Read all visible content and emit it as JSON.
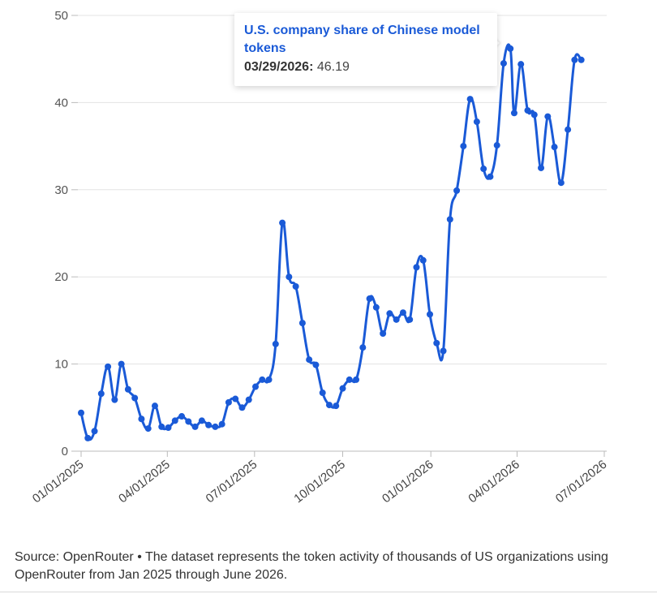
{
  "chart_data": {
    "type": "line",
    "title": "",
    "xlabel": "",
    "ylabel": "",
    "ylim": [
      0,
      50
    ],
    "y_ticks": [
      "0",
      "10",
      "20",
      "30",
      "40",
      "50"
    ],
    "x_ticks": [
      "01/01/2025",
      "04/01/2025",
      "07/01/2025",
      "10/01/2025",
      "01/01/2026",
      "04/01/2026",
      "07/01/2026"
    ],
    "x_tick_dates": [
      "2025-01-01",
      "2025-04-01",
      "2025-07-01",
      "2025-10-01",
      "2026-01-01",
      "2026-04-01",
      "2026-07-01"
    ],
    "grid": true,
    "line_color": "#1a5ad7",
    "series": [
      {
        "name": "U.S. company share of Chinese model tokens",
        "x": [
          "2025-01-01",
          "2025-01-08",
          "2025-01-15",
          "2025-01-22",
          "2025-01-29",
          "2025-02-05",
          "2025-02-12",
          "2025-02-19",
          "2025-02-26",
          "2025-03-05",
          "2025-03-12",
          "2025-03-19",
          "2025-03-26",
          "2025-04-02",
          "2025-04-09",
          "2025-04-16",
          "2025-04-23",
          "2025-04-30",
          "2025-05-07",
          "2025-05-14",
          "2025-05-21",
          "2025-05-28",
          "2025-06-04",
          "2025-06-11",
          "2025-06-18",
          "2025-06-25",
          "2025-07-02",
          "2025-07-09",
          "2025-07-16",
          "2025-07-23",
          "2025-07-30",
          "2025-08-06",
          "2025-08-13",
          "2025-08-20",
          "2025-08-27",
          "2025-09-03",
          "2025-09-10",
          "2025-09-17",
          "2025-09-24",
          "2025-10-01",
          "2025-10-08",
          "2025-10-15",
          "2025-10-22",
          "2025-10-29",
          "2025-11-05",
          "2025-11-12",
          "2025-11-19",
          "2025-11-26",
          "2025-12-03",
          "2025-12-10",
          "2025-12-17",
          "2025-12-24",
          "2025-12-31",
          "2026-01-07",
          "2026-01-14",
          "2026-01-21",
          "2026-01-28",
          "2026-02-04",
          "2026-02-11",
          "2026-02-18",
          "2026-02-25",
          "2026-03-04",
          "2026-03-11",
          "2026-03-18",
          "2026-03-25",
          "2026-03-29",
          "2026-04-05",
          "2026-04-12",
          "2026-04-19",
          "2026-04-26",
          "2026-05-03",
          "2026-05-10",
          "2026-05-17",
          "2026-05-24",
          "2026-05-31",
          "2026-06-07"
        ],
        "y": [
          4.4,
          1.5,
          2.3,
          6.6,
          9.7,
          5.9,
          10.0,
          7.1,
          6.1,
          3.7,
          2.6,
          5.2,
          2.8,
          2.7,
          3.5,
          4.0,
          3.4,
          2.8,
          3.5,
          3.0,
          2.8,
          3.1,
          5.6,
          6.0,
          5.0,
          5.9,
          7.4,
          8.2,
          8.2,
          12.3,
          26.2,
          20.0,
          18.9,
          14.7,
          10.5,
          9.9,
          6.7,
          5.3,
          5.2,
          7.2,
          8.2,
          8.2,
          11.9,
          17.5,
          16.5,
          13.5,
          15.8,
          15.1,
          15.9,
          15.1,
          21.1,
          21.9,
          15.7,
          12.4,
          11.5,
          26.6,
          29.9,
          35.0,
          40.4,
          37.8,
          32.4,
          31.5,
          35.1,
          44.5,
          46.19,
          38.8,
          44.4,
          39.1,
          38.6,
          32.5,
          38.4,
          34.9,
          30.8,
          36.9,
          44.9,
          44.9
        ]
      }
    ],
    "tooltip": {
      "title": "U.S. company share of Chinese model tokens",
      "date": "03/29/2026:",
      "value": "46.19"
    }
  },
  "footer": {
    "source_text": "Source: OpenRouter • The dataset represents the token activity of thousands of US organizations using OpenRouter from Jan 2025 through June 2026."
  }
}
